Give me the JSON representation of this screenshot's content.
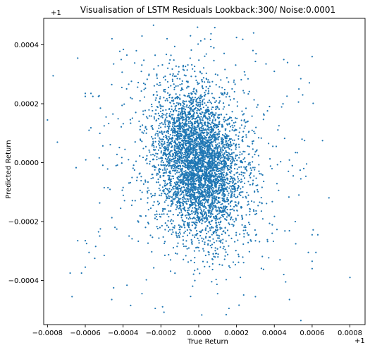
{
  "chart_data": {
    "type": "scatter",
    "title": "Visualisation of LSTM Residuals Lookback:300/ Noise:0.0001",
    "xlabel": "True Return",
    "ylabel": "Predicted Return",
    "x_offset_label": "+1",
    "y_offset_label": "+1",
    "xlim": [
      -0.00082,
      0.00088
    ],
    "ylim": [
      -0.00055,
      0.00049
    ],
    "x_ticks": [
      -0.0008,
      -0.0006,
      -0.0004,
      -0.0002,
      0.0,
      0.0002,
      0.0004,
      0.0006,
      0.0008
    ],
    "x_tick_labels": [
      "−0.0008",
      "−0.0006",
      "−0.0004",
      "−0.0002",
      "0.0000",
      "0.0002",
      "0.0004",
      "0.0006",
      "0.0008"
    ],
    "y_ticks": [
      -0.0004,
      -0.0002,
      0.0,
      0.0002,
      0.0004
    ],
    "y_tick_labels": [
      "−0.0004",
      "−0.0002",
      "0.0000",
      "0.0002",
      "0.0004"
    ],
    "grid": false,
    "marker_color": "#1f77b4",
    "series": [
      {
        "points": [
          [
            -0.00077,
            0.000295
          ],
          [
            -0.0008,
            0.000145
          ],
          [
            -0.00064,
            0.000355
          ],
          [
            -0.0006,
            0.000225
          ],
          [
            -0.0006,
            0.000235
          ],
          [
            -0.00057,
            0.000235
          ],
          [
            -0.00056,
            0.000225
          ],
          [
            -0.00053,
            0.000225
          ],
          [
            -0.00052,
            0.000185
          ],
          [
            -0.0005,
            0.000125
          ],
          [
            -0.00049,
            0.000155
          ],
          [
            -0.00058,
            0.00011
          ],
          [
            -0.00046,
            0.000265
          ],
          [
            -0.00045,
            0.000335
          ],
          [
            -0.00041,
            0.00035
          ],
          [
            -0.00038,
            0.000365
          ],
          [
            -0.00033,
            0.00038
          ],
          [
            -0.0003,
            0.00043
          ],
          [
            -0.0006,
            -0.000265
          ],
          [
            -0.00064,
            -0.000265
          ],
          [
            -0.00068,
            -0.000375
          ],
          [
            -0.00067,
            -0.000455
          ],
          [
            -0.00062,
            -0.000375
          ],
          [
            -0.0006,
            -0.000355
          ],
          [
            -0.00058,
            -0.000305
          ],
          [
            -0.00055,
            -0.000325
          ],
          [
            -0.0005,
            -0.000315
          ],
          [
            -0.00046,
            -0.000465
          ],
          [
            -0.00045,
            -0.000425
          ],
          [
            -0.00036,
            -0.000485
          ],
          [
            -0.0003,
            -0.000445
          ],
          [
            -0.00023,
            -0.000495
          ],
          [
            -0.0005,
            -8.5e-05
          ],
          [
            -0.00048,
            -8.5e-05
          ],
          [
            -0.00052,
            -0.000225
          ],
          [
            -0.00053,
            -0.000235
          ],
          [
            0.0002,
            0.000425
          ],
          [
            8e-05,
            0.00039
          ],
          [
            0.0004,
            0.00031
          ],
          [
            0.00045,
            0.00035
          ],
          [
            0.00047,
            0.00034
          ],
          [
            0.00053,
            0.00033
          ],
          [
            0.00054,
            0.000285
          ],
          [
            0.0006,
            0.00036
          ],
          [
            0.00053,
            0.00025
          ],
          [
            0.00055,
            0.00023
          ],
          [
            0.00056,
            7.5e-05
          ],
          [
            0.00053,
            -0.00011
          ],
          [
            0.00054,
            -5.5e-05
          ],
          [
            0.0005,
            -4.5e-05
          ],
          [
            0.0006,
            -0.000245
          ],
          [
            0.00063,
            -0.000245
          ],
          [
            0.00058,
            -0.000305
          ],
          [
            0.00062,
            -0.000305
          ],
          [
            0.0006,
            -0.000335
          ],
          [
            0.00043,
            -0.00033
          ],
          [
            0.00045,
            -0.00038
          ],
          [
            0.00046,
            -0.000405
          ],
          [
            0.00048,
            -0.000465
          ],
          [
            0.0006,
            -0.00036
          ],
          [
            0.0008,
            -0.00039
          ],
          [
            0.0003,
            -0.000455
          ],
          [
            0.00016,
            -0.000495
          ],
          [
            0.0001,
            -0.000445
          ]
        ]
      }
    ]
  }
}
